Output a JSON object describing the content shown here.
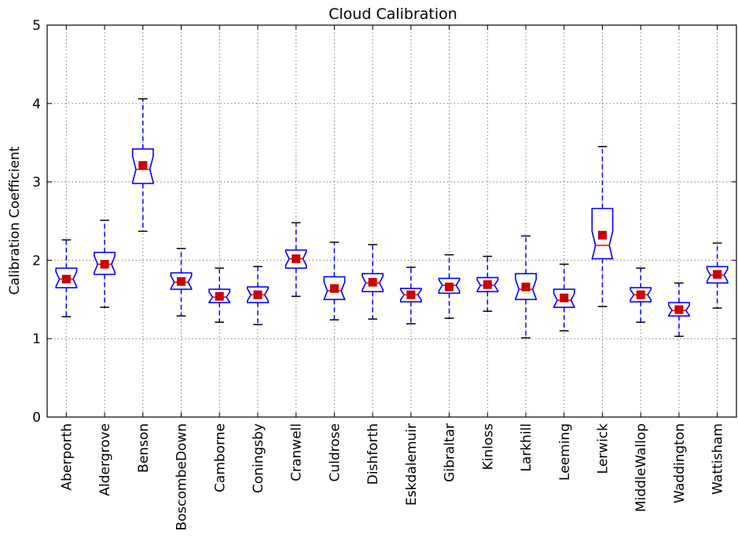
{
  "chart_data": {
    "type": "box",
    "title": "Cloud Calibration",
    "xlabel": "",
    "ylabel": "Calibration Coefficient",
    "ylim": [
      0,
      5
    ],
    "yticks": [
      "0",
      "1",
      "2",
      "3",
      "4",
      "5"
    ],
    "grid": true,
    "notched": true,
    "colors": {
      "box": "#0000ff",
      "whisker": "#0000ff",
      "median": "#ff0000",
      "mean_marker": "#cc0000",
      "cap": "#000000"
    },
    "categories": [
      "Aberporth",
      "Aldergrove",
      "Benson",
      "BoscombeDown",
      "Camborne",
      "Coningsby",
      "Cranwell",
      "Culdrose",
      "Dishforth",
      "Eskdalemuir",
      "Gibraltar",
      "Kinloss",
      "Larkhill",
      "Leeming",
      "Lerwick",
      "MiddleWallop",
      "Waddington",
      "Wattisham"
    ],
    "boxes": [
      {
        "whisker_low": 1.28,
        "q1": 1.65,
        "median": 1.76,
        "q3": 1.9,
        "whisker_high": 2.26,
        "mean": 1.76
      },
      {
        "whisker_low": 1.4,
        "q1": 1.82,
        "median": 1.95,
        "q3": 2.1,
        "whisker_high": 2.51,
        "mean": 1.95
      },
      {
        "whisker_low": 2.37,
        "q1": 2.98,
        "median": 3.16,
        "q3": 3.42,
        "whisker_high": 4.06,
        "mean": 3.21
      },
      {
        "whisker_low": 1.29,
        "q1": 1.63,
        "median": 1.72,
        "q3": 1.84,
        "whisker_high": 2.15,
        "mean": 1.73
      },
      {
        "whisker_low": 1.21,
        "q1": 1.46,
        "median": 1.53,
        "q3": 1.63,
        "whisker_high": 1.9,
        "mean": 1.54
      },
      {
        "whisker_low": 1.18,
        "q1": 1.46,
        "median": 1.56,
        "q3": 1.66,
        "whisker_high": 1.92,
        "mean": 1.56
      },
      {
        "whisker_low": 1.54,
        "q1": 1.9,
        "median": 2.02,
        "q3": 2.13,
        "whisker_high": 2.48,
        "mean": 2.02
      },
      {
        "whisker_low": 1.24,
        "q1": 1.5,
        "median": 1.61,
        "q3": 1.79,
        "whisker_high": 2.23,
        "mean": 1.64
      },
      {
        "whisker_low": 1.25,
        "q1": 1.6,
        "median": 1.71,
        "q3": 1.83,
        "whisker_high": 2.2,
        "mean": 1.72
      },
      {
        "whisker_low": 1.19,
        "q1": 1.47,
        "median": 1.56,
        "q3": 1.64,
        "whisker_high": 1.91,
        "mean": 1.56
      },
      {
        "whisker_low": 1.26,
        "q1": 1.58,
        "median": 1.68,
        "q3": 1.77,
        "whisker_high": 2.07,
        "mean": 1.66
      },
      {
        "whisker_low": 1.35,
        "q1": 1.6,
        "median": 1.68,
        "q3": 1.78,
        "whisker_high": 2.05,
        "mean": 1.69
      },
      {
        "whisker_low": 1.01,
        "q1": 1.5,
        "median": 1.63,
        "q3": 1.83,
        "whisker_high": 2.31,
        "mean": 1.66
      },
      {
        "whisker_low": 1.1,
        "q1": 1.4,
        "median": 1.49,
        "q3": 1.63,
        "whisker_high": 1.95,
        "mean": 1.52
      },
      {
        "whisker_low": 1.41,
        "q1": 2.02,
        "median": 2.19,
        "q3": 2.66,
        "whisker_high": 3.45,
        "mean": 2.32
      },
      {
        "whisker_low": 1.21,
        "q1": 1.47,
        "median": 1.56,
        "q3": 1.65,
        "whisker_high": 1.9,
        "mean": 1.56
      },
      {
        "whisker_low": 1.03,
        "q1": 1.29,
        "median": 1.36,
        "q3": 1.46,
        "whisker_high": 1.71,
        "mean": 1.37
      },
      {
        "whisker_low": 1.39,
        "q1": 1.71,
        "median": 1.81,
        "q3": 1.92,
        "whisker_high": 2.22,
        "mean": 1.82
      }
    ]
  }
}
